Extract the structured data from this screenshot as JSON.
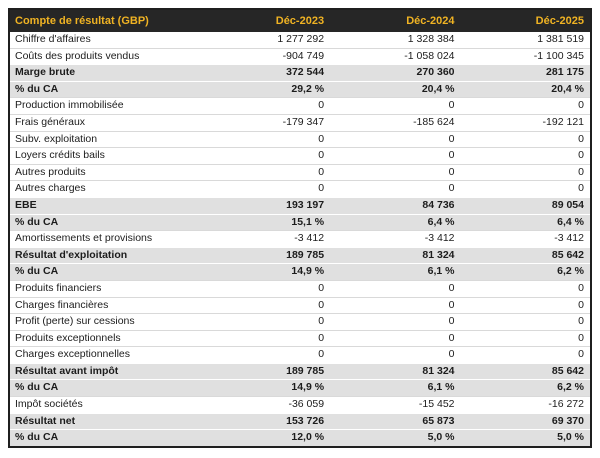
{
  "colors": {
    "header_bg": "#262626",
    "header_text": "#f0b323",
    "total_row_bg": "#e0e0e0",
    "normal_row_bg": "#ffffff",
    "body_text": "#1c1c1c",
    "outer_border": "#1f1f1f",
    "row_divider": "#d9d9d9"
  },
  "table": {
    "title": "Compte de résultat (GBP)",
    "columns": [
      "Déc-2023",
      "Déc-2024",
      "Déc-2025"
    ],
    "rows": [
      {
        "label": "Chiffre d'affaires",
        "style": "normal",
        "values": [
          "1 277 292",
          "1 328 384",
          "1 381 519"
        ]
      },
      {
        "label": "Coûts des produits vendus",
        "style": "normal",
        "values": [
          "-904 749",
          "-1 058 024",
          "-1 100 345"
        ]
      },
      {
        "label": "Marge brute",
        "style": "total",
        "values": [
          "372 544",
          "270 360",
          "281 175"
        ]
      },
      {
        "label": "% du CA",
        "style": "total",
        "values": [
          "29,2 %",
          "20,4 %",
          "20,4 %"
        ]
      },
      {
        "label": "Production immobilisée",
        "style": "normal",
        "values": [
          "0",
          "0",
          "0"
        ]
      },
      {
        "label": "Frais généraux",
        "style": "normal",
        "values": [
          "-179 347",
          "-185 624",
          "-192 121"
        ]
      },
      {
        "label": "Subv. exploitation",
        "style": "normal",
        "values": [
          "0",
          "0",
          "0"
        ]
      },
      {
        "label": "Loyers crédits bails",
        "style": "normal",
        "values": [
          "0",
          "0",
          "0"
        ]
      },
      {
        "label": "Autres produits",
        "style": "normal",
        "values": [
          "0",
          "0",
          "0"
        ]
      },
      {
        "label": "Autres charges",
        "style": "normal",
        "values": [
          "0",
          "0",
          "0"
        ]
      },
      {
        "label": "EBE",
        "style": "total",
        "values": [
          "193 197",
          "84 736",
          "89 054"
        ]
      },
      {
        "label": "% du CA",
        "style": "total",
        "values": [
          "15,1 %",
          "6,4 %",
          "6,4 %"
        ]
      },
      {
        "label": "Amortissements et provisions",
        "style": "normal",
        "values": [
          "-3 412",
          "-3 412",
          "-3 412"
        ]
      },
      {
        "label": "Résultat d'exploitation",
        "style": "total",
        "values": [
          "189 785",
          "81 324",
          "85 642"
        ]
      },
      {
        "label": "% du CA",
        "style": "total",
        "values": [
          "14,9 %",
          "6,1 %",
          "6,2 %"
        ]
      },
      {
        "label": "Produits financiers",
        "style": "normal",
        "values": [
          "0",
          "0",
          "0"
        ]
      },
      {
        "label": "Charges financières",
        "style": "normal",
        "values": [
          "0",
          "0",
          "0"
        ]
      },
      {
        "label": "Profit (perte) sur cessions",
        "style": "normal",
        "values": [
          "0",
          "0",
          "0"
        ]
      },
      {
        "label": "Produits exceptionnels",
        "style": "normal",
        "values": [
          "0",
          "0",
          "0"
        ]
      },
      {
        "label": "Charges exceptionnelles",
        "style": "normal",
        "values": [
          "0",
          "0",
          "0"
        ]
      },
      {
        "label": "Résultat avant impôt",
        "style": "total",
        "values": [
          "189 785",
          "81 324",
          "85 642"
        ]
      },
      {
        "label": "% du CA",
        "style": "total",
        "values": [
          "14,9 %",
          "6,1 %",
          "6,2 %"
        ]
      },
      {
        "label": "Impôt sociétés",
        "style": "normal",
        "values": [
          "-36 059",
          "-15 452",
          "-16 272"
        ]
      },
      {
        "label": "Résultat net",
        "style": "total",
        "values": [
          "153 726",
          "65 873",
          "69 370"
        ]
      },
      {
        "label": "% du CA",
        "style": "total",
        "values": [
          "12,0 %",
          "5,0 %",
          "5,0 %"
        ]
      }
    ]
  }
}
